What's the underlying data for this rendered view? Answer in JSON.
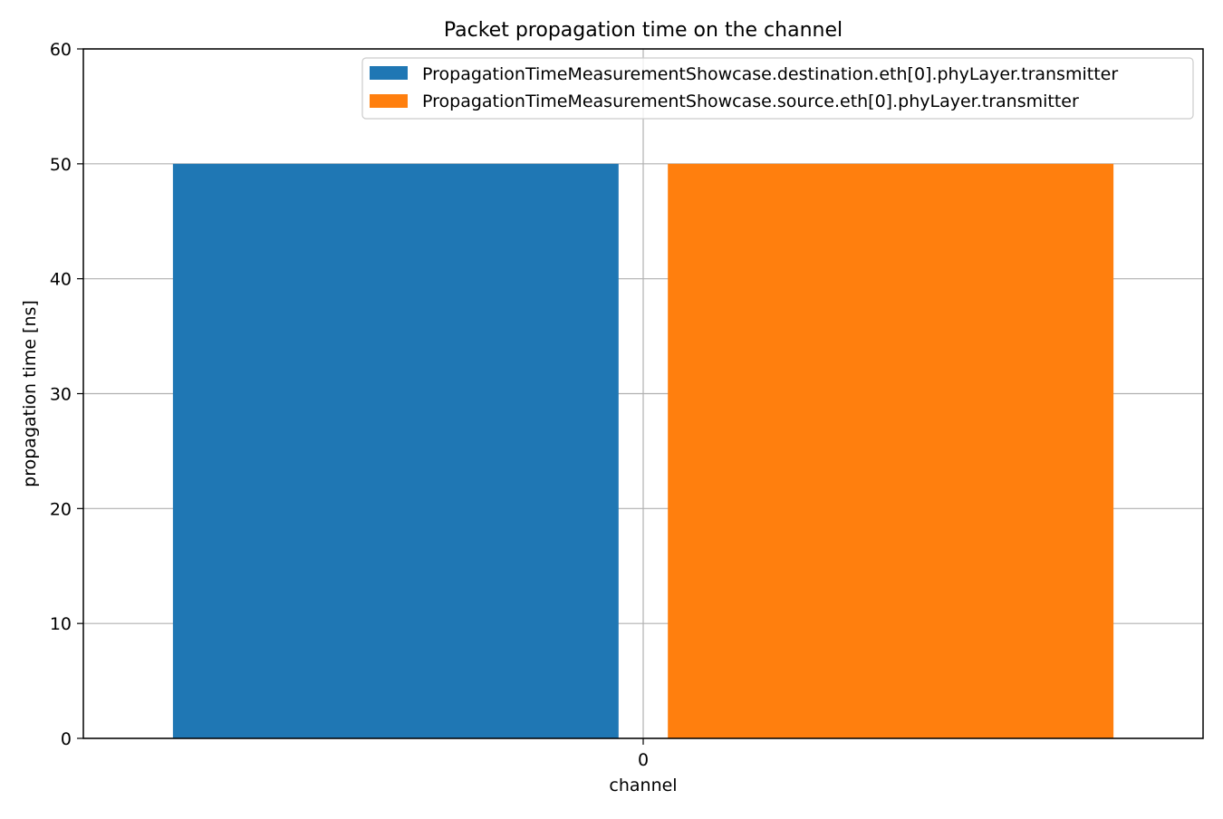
{
  "chart_data": {
    "type": "bar",
    "title": "Packet propagation time on the channel",
    "xlabel": "channel",
    "ylabel": "propagation time [ns]",
    "categories": [
      "0"
    ],
    "series": [
      {
        "name": "PropagationTimeMeasurementShowcase.destination.eth[0].phyLayer.transmitter",
        "values": [
          50
        ],
        "color": "#1f77b4"
      },
      {
        "name": "PropagationTimeMeasurementShowcase.source.eth[0].phyLayer.transmitter",
        "values": [
          50
        ],
        "color": "#ff7f0e"
      }
    ],
    "ylim": [
      0,
      60
    ],
    "yticks": [
      0,
      10,
      20,
      30,
      40,
      50,
      60
    ],
    "grid": true,
    "legend_position": "top-right"
  }
}
